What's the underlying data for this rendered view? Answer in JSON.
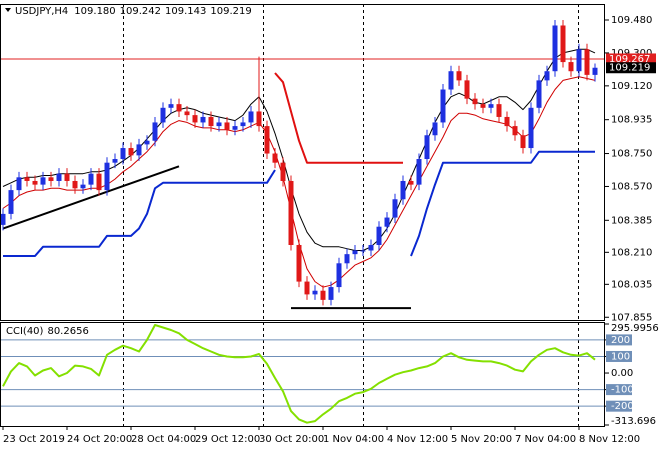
{
  "chart_data": {
    "type": "candlestick",
    "title": "USDJPY,H4",
    "header_values": [
      "109.180",
      "109.242",
      "109.143",
      "109.219"
    ],
    "open": [
      108.36,
      108.42,
      108.55,
      108.62,
      108.6,
      108.58,
      108.62,
      108.6,
      108.64,
      108.6,
      108.56,
      108.58,
      108.64,
      108.55,
      108.7,
      108.72,
      108.78,
      108.74,
      108.8,
      108.82,
      108.92,
      109.0,
      109.02,
      108.98,
      108.96,
      108.92,
      108.95,
      108.9,
      108.92,
      108.88,
      108.9,
      108.92,
      108.98,
      108.9,
      108.75,
      108.7,
      108.6,
      108.25,
      108.05,
      107.98,
      108.0,
      107.95,
      108.02,
      108.15,
      108.2,
      108.22,
      108.22,
      108.25,
      108.35,
      108.4,
      108.5,
      108.6,
      108.58,
      108.72,
      108.85,
      108.92,
      109.1,
      109.2,
      109.15,
      109.05,
      109.02,
      109.0,
      109.02,
      108.95,
      108.9,
      108.85,
      108.78,
      109.0,
      109.15,
      109.2,
      109.45,
      109.25,
      109.2,
      109.32,
      109.18
    ],
    "high": [
      108.45,
      108.58,
      108.65,
      108.65,
      108.63,
      108.65,
      108.65,
      108.67,
      108.67,
      108.63,
      108.61,
      108.67,
      108.67,
      108.73,
      108.75,
      108.81,
      108.81,
      108.83,
      108.85,
      108.95,
      109.03,
      109.05,
      109.05,
      109.01,
      108.99,
      108.98,
      108.98,
      108.95,
      108.95,
      108.93,
      108.95,
      109.01,
      109.28,
      108.93,
      108.78,
      108.73,
      108.63,
      108.28,
      108.08,
      108.03,
      108.03,
      108.05,
      108.18,
      108.23,
      108.25,
      108.25,
      108.28,
      108.38,
      108.43,
      108.53,
      108.63,
      108.63,
      108.75,
      108.88,
      108.95,
      109.13,
      109.23,
      109.23,
      109.18,
      109.08,
      109.05,
      109.05,
      109.05,
      108.98,
      108.93,
      108.88,
      109.03,
      109.18,
      109.23,
      109.48,
      109.48,
      109.28,
      109.35,
      109.35,
      109.242
    ],
    "low": [
      108.33,
      108.39,
      108.52,
      108.57,
      108.55,
      108.55,
      108.57,
      108.57,
      108.57,
      108.53,
      108.53,
      108.55,
      108.52,
      108.52,
      108.67,
      108.69,
      108.71,
      108.71,
      108.77,
      108.79,
      108.89,
      108.97,
      108.95,
      108.93,
      108.89,
      108.89,
      108.87,
      108.87,
      108.85,
      108.85,
      108.87,
      108.89,
      108.87,
      108.72,
      108.67,
      108.57,
      108.22,
      108.02,
      107.95,
      107.95,
      107.92,
      107.92,
      107.99,
      108.12,
      108.17,
      108.19,
      108.19,
      108.22,
      108.32,
      108.37,
      108.47,
      108.55,
      108.55,
      108.69,
      108.82,
      108.89,
      109.07,
      109.12,
      109.02,
      108.99,
      108.97,
      108.97,
      108.92,
      108.87,
      108.82,
      108.75,
      108.75,
      108.97,
      109.12,
      109.17,
      109.22,
      109.17,
      109.17,
      109.15,
      109.143
    ],
    "close": [
      108.42,
      108.55,
      108.62,
      108.6,
      108.58,
      108.62,
      108.6,
      108.64,
      108.6,
      108.56,
      108.58,
      108.64,
      108.55,
      108.7,
      108.72,
      108.78,
      108.74,
      108.8,
      108.82,
      108.92,
      109.0,
      109.02,
      108.98,
      108.96,
      108.92,
      108.95,
      108.9,
      108.92,
      108.88,
      108.9,
      108.92,
      108.98,
      108.9,
      108.75,
      108.7,
      108.6,
      108.25,
      108.05,
      107.98,
      108.0,
      107.95,
      108.02,
      108.15,
      108.2,
      108.22,
      108.22,
      108.25,
      108.35,
      108.4,
      108.5,
      108.6,
      108.58,
      108.72,
      108.85,
      108.92,
      109.1,
      109.2,
      109.15,
      109.05,
      109.02,
      109.0,
      109.02,
      108.95,
      108.9,
      108.85,
      108.78,
      109.0,
      109.15,
      109.2,
      109.45,
      109.25,
      109.2,
      109.32,
      109.18,
      109.219
    ],
    "up_color": "#1e30e0",
    "down_color": "#e01818",
    "grid": false,
    "xlim": [
      -0.375,
      75.25
    ],
    "ylim": [
      107.84,
      109.562
    ],
    "yticks": [
      {
        "value": 109.48,
        "label": "109.480"
      },
      {
        "value": 109.3,
        "label": "109.300"
      },
      {
        "value": 109.12,
        "label": "109.120"
      },
      {
        "value": 108.935,
        "label": "108.935"
      },
      {
        "value": 108.75,
        "label": "108.750"
      },
      {
        "value": 108.57,
        "label": "108.570"
      },
      {
        "value": 108.385,
        "label": "108.385"
      },
      {
        "value": 108.21,
        "label": "108.210"
      },
      {
        "value": 108.035,
        "label": "108.035"
      },
      {
        "value": 107.855,
        "label": "107.855"
      }
    ],
    "xticks": [
      {
        "value": 0,
        "label": "23 Oct 2019"
      },
      {
        "value": 8,
        "label": "24 Oct 20:00"
      },
      {
        "value": 16,
        "label": "28 Oct 04:00"
      },
      {
        "value": 24,
        "label": "29 Oct 12:00"
      },
      {
        "value": 32,
        "label": "30 Oct 20:00"
      },
      {
        "value": 40,
        "label": "1 Nov 04:00"
      },
      {
        "value": 48,
        "label": "4 Nov 12:00"
      },
      {
        "value": 56,
        "label": "5 Nov 20:00"
      },
      {
        "value": 64,
        "label": "7 Nov 04:00"
      },
      {
        "value": 72,
        "label": "8 Nov 12:00"
      }
    ],
    "lines": [
      {
        "color": "#000000",
        "width": 1,
        "values": [
          108.57,
          108.59,
          108.61,
          108.62,
          108.62,
          108.63,
          108.63,
          108.64,
          108.64,
          108.64,
          108.64,
          108.65,
          108.65,
          108.66,
          108.68,
          108.71,
          108.74,
          108.78,
          108.83,
          108.88,
          108.93,
          108.97,
          108.99,
          109.0,
          108.99,
          108.97,
          108.96,
          108.95,
          108.94,
          108.93,
          108.96,
          109.02,
          109.06,
          108.98,
          108.86,
          108.72,
          108.56,
          108.42,
          108.32,
          108.26,
          108.24,
          108.24,
          108.24,
          108.23,
          108.22,
          108.22,
          108.24,
          108.28,
          108.34,
          108.42,
          108.52,
          108.62,
          108.72,
          108.82,
          108.92,
          109.0,
          109.06,
          109.08,
          109.06,
          109.03,
          109.02,
          109.04,
          109.06,
          109.06,
          109.03,
          108.99,
          109.04,
          109.12,
          109.2,
          109.27,
          109.3,
          109.31,
          109.32,
          109.32,
          109.3
        ]
      },
      {
        "color": "#d00000",
        "width": 1,
        "values": [
          108.45,
          108.48,
          108.52,
          108.54,
          108.55,
          108.55,
          108.56,
          108.56,
          108.55,
          108.55,
          108.55,
          108.56,
          108.56,
          108.58,
          108.61,
          108.65,
          108.68,
          108.72,
          108.76,
          108.81,
          108.87,
          108.91,
          108.93,
          108.92,
          108.9,
          108.89,
          108.89,
          108.88,
          108.88,
          108.87,
          108.88,
          108.9,
          108.92,
          108.86,
          108.76,
          108.62,
          108.44,
          108.26,
          108.12,
          108.05,
          108.02,
          108.03,
          108.06,
          108.1,
          108.14,
          108.16,
          108.18,
          108.22,
          108.28,
          108.36,
          108.44,
          108.52,
          108.6,
          108.68,
          108.76,
          108.84,
          108.93,
          108.97,
          108.97,
          108.96,
          108.94,
          108.93,
          108.92,
          108.91,
          108.88,
          108.84,
          108.86,
          108.94,
          109.03,
          109.1,
          109.15,
          109.16,
          109.17,
          109.16,
          109.15
        ]
      },
      {
        "color": "#0a28d0",
        "width": 2,
        "values": [
          108.19,
          108.19,
          108.19,
          108.19,
          108.19,
          108.24,
          108.24,
          108.24,
          108.24,
          108.24,
          108.24,
          108.24,
          108.24,
          108.3,
          108.3,
          108.3,
          108.3,
          108.34,
          108.42,
          108.56,
          108.59,
          108.59,
          108.59,
          108.59,
          108.59,
          108.59,
          108.59,
          108.59,
          108.59,
          108.59,
          108.59,
          108.59,
          108.59,
          108.59,
          108.66,
          null,
          null,
          null,
          null,
          null,
          null,
          null,
          null,
          null,
          null,
          null,
          null,
          null,
          null,
          null,
          null,
          108.19,
          108.3,
          108.45,
          108.58,
          108.7,
          108.7,
          108.7,
          108.7,
          108.7,
          108.7,
          108.7,
          108.7,
          108.7,
          108.7,
          108.7,
          108.7,
          108.76,
          108.76,
          108.76,
          108.76,
          108.76,
          108.76,
          108.76,
          108.76
        ]
      },
      {
        "color": "#e01010",
        "width": 2,
        "values": [
          null,
          null,
          null,
          null,
          null,
          null,
          null,
          null,
          null,
          null,
          null,
          null,
          null,
          null,
          null,
          null,
          null,
          null,
          null,
          null,
          null,
          null,
          null,
          null,
          null,
          null,
          null,
          null,
          null,
          null,
          null,
          null,
          null,
          null,
          109.19,
          109.14,
          108.98,
          108.82,
          108.7,
          108.7,
          108.7,
          108.7,
          108.7,
          108.7,
          108.7,
          108.7,
          108.7,
          108.7,
          108.7,
          108.7,
          108.7,
          null,
          null,
          null,
          null,
          null,
          null,
          null,
          null,
          null,
          null,
          null,
          null,
          null,
          null,
          null,
          null,
          null,
          null,
          null,
          null,
          null,
          null,
          null,
          null
        ]
      }
    ],
    "trendlines": [
      {
        "color": "#000000",
        "points": [
          [
            0,
            108.34
          ],
          [
            22,
            108.68
          ]
        ]
      },
      {
        "color": "#000000",
        "points": [
          [
            36,
            107.905
          ],
          [
            51,
            107.905
          ]
        ]
      }
    ],
    "price_markers": [
      {
        "value": 109.267,
        "label": "109.267",
        "color": "#e02020",
        "line": true
      },
      {
        "value": 109.219,
        "label": "109.219",
        "color": "#000000",
        "line": false
      }
    ],
    "indicator": {
      "type": "line",
      "label": "CCI(40)",
      "color": "#84e000",
      "values": [
        -80,
        10,
        60,
        40,
        -15,
        15,
        30,
        -20,
        0,
        45,
        40,
        25,
        -15,
        110,
        140,
        165,
        150,
        130,
        200,
        290,
        275,
        260,
        240,
        200,
        175,
        150,
        130,
        110,
        100,
        95,
        95,
        100,
        115,
        55,
        -30,
        -110,
        -230,
        -280,
        -300,
        -290,
        -250,
        -215,
        -170,
        -150,
        -125,
        -115,
        -95,
        -60,
        -35,
        -10,
        5,
        15,
        30,
        40,
        60,
        100,
        120,
        95,
        80,
        75,
        70,
        70,
        60,
        45,
        20,
        10,
        70,
        110,
        140,
        150,
        125,
        110,
        105,
        120,
        80.2656
      ],
      "ylim": [
        -313.696,
        295.9956
      ],
      "yticks": [
        295.9956,
        200,
        100,
        {
          "value": 0,
          "label": "0.00"
        },
        -100,
        -200,
        -313.696
      ],
      "levels": [
        200,
        100,
        -100,
        -200
      ],
      "level_color": "#6f8fb8"
    }
  }
}
